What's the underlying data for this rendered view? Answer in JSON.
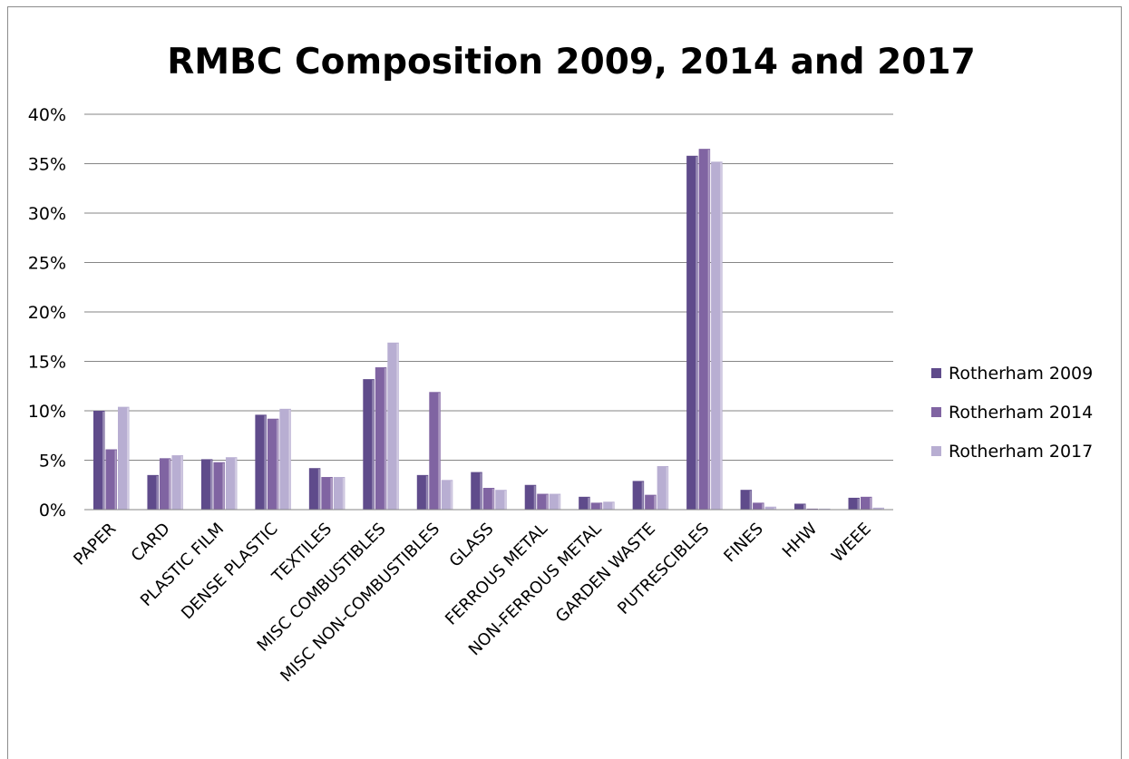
{
  "chart_data": {
    "type": "bar",
    "title": "RMBC Composition 2009, 2014 and 2017",
    "xlabel": "",
    "ylabel": "",
    "ylim": [
      0,
      0.4
    ],
    "yticks": [
      "0%",
      "5%",
      "10%",
      "15%",
      "20%",
      "25%",
      "30%",
      "35%",
      "40%"
    ],
    "grid": true,
    "legend_position": "right",
    "categories": [
      "PAPER",
      "CARD",
      "PLASTIC FILM",
      "DENSE PLASTIC",
      "TEXTILES",
      "MISC COMBUSTIBLES",
      "MISC NON-COMBUSTIBLES",
      "GLASS",
      "FERROUS METAL",
      "NON-FERROUS METAL",
      "GARDEN WASTE",
      "PUTRESCIBLES",
      "FINES",
      "HHW",
      "WEEE"
    ],
    "series": [
      {
        "name": "Rotherham 2009",
        "color": "#5f4b8b",
        "values": [
          0.1,
          0.035,
          0.051,
          0.096,
          0.042,
          0.132,
          0.035,
          0.038,
          0.025,
          0.013,
          0.029,
          0.358,
          0.02,
          0.006,
          0.012
        ]
      },
      {
        "name": "Rotherham 2014",
        "color": "#8064a2",
        "values": [
          0.061,
          0.052,
          0.048,
          0.092,
          0.033,
          0.144,
          0.119,
          0.022,
          0.016,
          0.007,
          0.015,
          0.365,
          0.007,
          0.001,
          0.013
        ]
      },
      {
        "name": "Rotherham 2017",
        "color": "#b8aed2",
        "values": [
          0.104,
          0.055,
          0.053,
          0.102,
          0.033,
          0.169,
          0.03,
          0.02,
          0.016,
          0.008,
          0.044,
          0.352,
          0.003,
          0.001,
          0.002
        ]
      }
    ]
  }
}
